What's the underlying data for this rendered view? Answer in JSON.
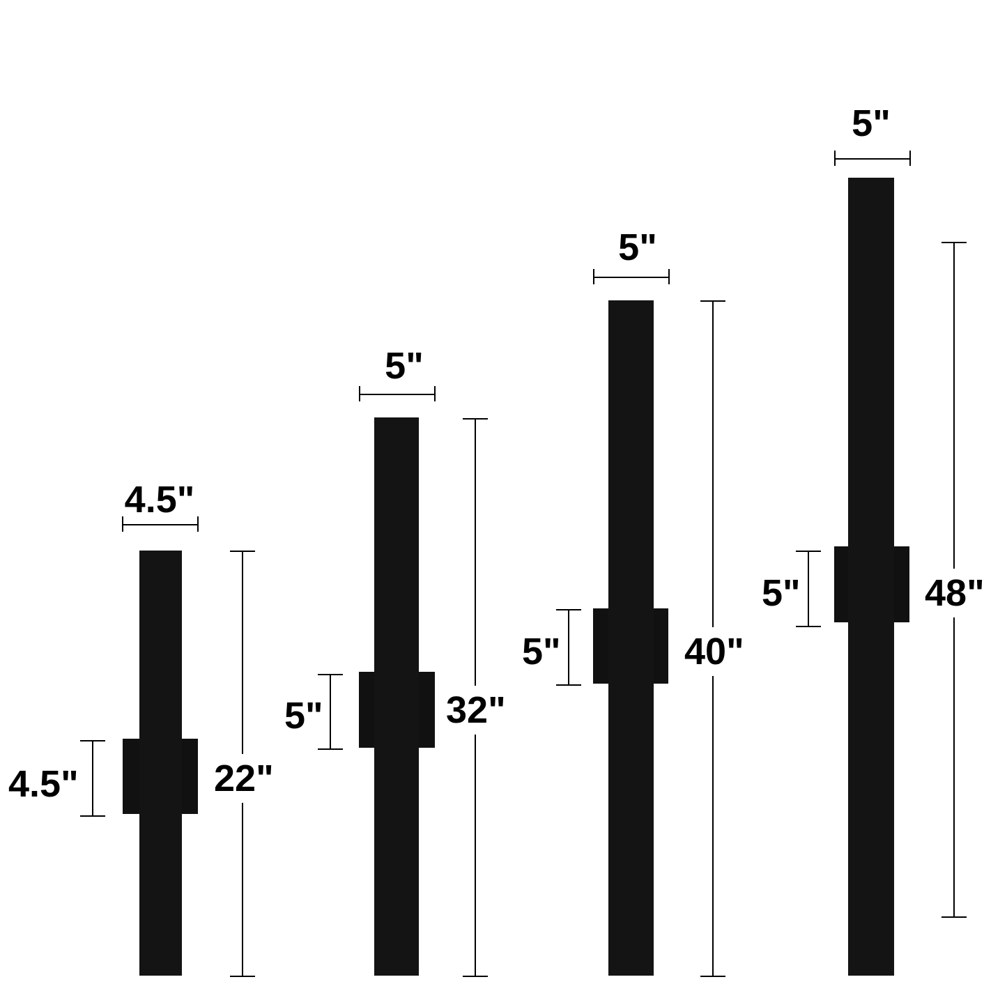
{
  "fixtures": [
    {
      "width_label": "4.5\"",
      "bracket_label": "4.5\"",
      "height_label": "22\""
    },
    {
      "width_label": "5\"",
      "bracket_label": "5\"",
      "height_label": "32\""
    },
    {
      "width_label": "5\"",
      "bracket_label": "5\"",
      "height_label": "40\""
    },
    {
      "width_label": "5\"",
      "bracket_label": "5\"",
      "height_label": "48\""
    }
  ],
  "colors": {
    "fixture": "#141414",
    "background": "#ffffff",
    "dimension_lines": "#000000"
  }
}
